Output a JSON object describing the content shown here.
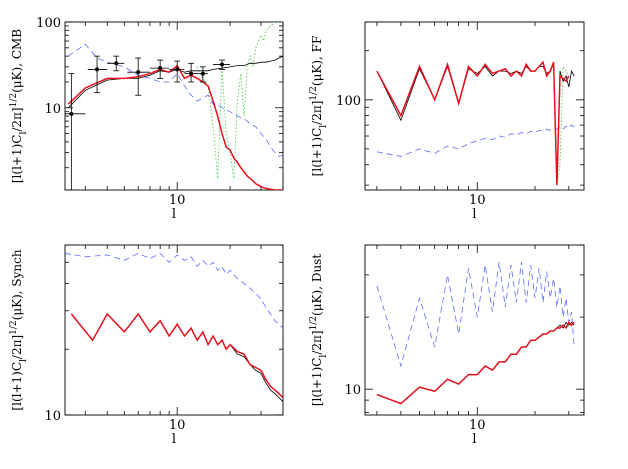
{
  "chart_data": [
    {
      "type": "line",
      "ylabel": "[l(l+1)C_l/2π]^{1/2}(μK), CMB",
      "ylabel_main": "[l(l+1)C",
      "ylabel_sub": "l",
      "ylabel_rest": "/2π]",
      "ylabel_sup": "1/2",
      "ylabel_tail": "(μK), CMB",
      "xlabel": "l",
      "xscale": "log",
      "yscale": "log",
      "xlim": [
        2.3,
        40
      ],
      "ylim": [
        1.1,
        100
      ],
      "xticks": [
        {
          "v": 10,
          "label": "10"
        }
      ],
      "yticks": [
        {
          "v": 10,
          "label": "10"
        },
        {
          "v": 100,
          "label": "100"
        }
      ],
      "series": [
        {
          "style": "red-solid",
          "x": [
            2.4,
            3,
            4,
            5,
            6,
            7,
            8,
            9,
            10,
            11,
            12,
            13,
            14,
            15,
            16,
            17,
            18,
            19,
            20,
            21,
            22,
            23,
            24,
            25,
            26,
            27,
            28,
            29,
            30,
            32,
            34,
            36,
            38,
            40
          ],
          "y": [
            11,
            17,
            22,
            22,
            23,
            25,
            28,
            26,
            31,
            22,
            24,
            22,
            20,
            18,
            12,
            8,
            5,
            3.5,
            3.2,
            2.6,
            2.3,
            2.0,
            1.8,
            1.6,
            1.5,
            1.4,
            1.3,
            1.25,
            1.2,
            1.15,
            1.12,
            1.1,
            1.1,
            1.1
          ]
        },
        {
          "style": "black-solid",
          "x": [
            2.4,
            3,
            4,
            5,
            6,
            7,
            8,
            9,
            10,
            11,
            12,
            13,
            14,
            15,
            16,
            18,
            20,
            22,
            24,
            26,
            28,
            30,
            32,
            34,
            36,
            38,
            40
          ],
          "y": [
            10,
            16,
            21,
            22,
            22,
            24,
            27,
            26,
            28,
            26,
            27,
            27,
            27,
            27,
            28,
            29,
            30,
            31,
            31,
            33,
            33,
            34,
            34,
            35,
            36,
            38,
            40
          ]
        },
        {
          "style": "blue-dashed",
          "x": [
            2.4,
            3,
            3.5,
            4,
            5,
            6,
            7,
            8,
            9,
            10,
            11,
            12,
            13,
            14,
            15,
            16,
            17,
            18,
            20,
            22,
            24,
            26,
            28,
            30,
            32,
            34,
            36,
            38,
            40
          ],
          "y": [
            40,
            55,
            38,
            34,
            30,
            24,
            22,
            20,
            20,
            25,
            18,
            14,
            12,
            13,
            14,
            11,
            11,
            10,
            9,
            8,
            7.5,
            6.5,
            6,
            5,
            4.3,
            3.5,
            3,
            2.7,
            2.8
          ]
        },
        {
          "style": "green-dotted",
          "x": [
            13,
            14,
            15,
            16,
            17,
            18,
            19,
            20,
            21,
            22,
            23,
            24,
            25,
            26,
            27,
            28,
            29,
            30,
            31,
            32,
            34,
            36,
            38,
            40
          ],
          "y": [
            30,
            22,
            18,
            6,
            1.5,
            30,
            5,
            3,
            1.5,
            12,
            25,
            8,
            30,
            40,
            30,
            50,
            60,
            70,
            60,
            80,
            90,
            100,
            100,
            100
          ]
        }
      ],
      "points": {
        "x": [
          2.5,
          3.5,
          4.5,
          6,
          8,
          10,
          12,
          14,
          18
        ],
        "y": [
          8.5,
          28,
          33,
          26,
          29,
          28,
          25,
          25,
          32
        ],
        "ylo": [
          1.1,
          15,
          27,
          14,
          22,
          20,
          20,
          20,
          28
        ],
        "yhi": [
          25,
          40,
          40,
          38,
          36,
          35,
          33,
          30,
          36
        ],
        "xlo": [
          2.2,
          3.1,
          4,
          5.2,
          7,
          9,
          11,
          12.5,
          16
        ],
        "xhi": [
          3,
          4,
          5,
          7,
          9,
          11,
          13,
          15,
          20
        ]
      }
    },
    {
      "type": "line",
      "ylabel": "[l(l+1)C_l/2π]^{1/2}(μK), FF",
      "ylabel_main": "[l(l+1)C",
      "ylabel_sub": "l",
      "ylabel_rest": "/2π]",
      "ylabel_sup": "1/2",
      "ylabel_tail": "(μK), FF",
      "xlabel": "l",
      "xscale": "log",
      "yscale": "log",
      "xlim": [
        2.6,
        36
      ],
      "ylim": [
        28,
        300
      ],
      "xticks": [
        {
          "v": 10,
          "label": "10"
        }
      ],
      "yticks": [
        {
          "v": 100,
          "label": "100"
        }
      ],
      "series": [
        {
          "style": "red-solid",
          "x": [
            3,
            4,
            5,
            6,
            7,
            8,
            9,
            10,
            11,
            12,
            13,
            14,
            15,
            16,
            17,
            18,
            19,
            20,
            21,
            22,
            23,
            24,
            25,
            26,
            27,
            28,
            29,
            30
          ],
          "y": [
            150,
            80,
            160,
            100,
            165,
            95,
            160,
            140,
            165,
            145,
            150,
            155,
            140,
            150,
            140,
            165,
            150,
            150,
            160,
            170,
            140,
            150,
            170,
            30,
            140,
            135,
            130,
            140
          ]
        },
        {
          "style": "black-solid",
          "x": [
            3,
            4,
            5,
            6,
            7,
            8,
            9,
            10,
            11,
            12,
            13,
            14,
            15,
            16,
            17,
            18,
            19,
            20,
            21,
            22,
            23,
            24,
            25,
            26,
            27,
            28,
            29,
            30,
            31,
            32
          ],
          "y": [
            150,
            75,
            155,
            100,
            160,
            95,
            155,
            145,
            160,
            140,
            150,
            150,
            145,
            150,
            145,
            160,
            150,
            150,
            160,
            160,
            145,
            150,
            165,
            30,
            150,
            130,
            140,
            120,
            150,
            140
          ]
        },
        {
          "style": "blue-dashed",
          "x": [
            3,
            4,
            5,
            6,
            7,
            8,
            9,
            10,
            11,
            12,
            13,
            14,
            15,
            16,
            17,
            18,
            19,
            20,
            21,
            22,
            23,
            24,
            25,
            26,
            27,
            28,
            29,
            30,
            31,
            32
          ],
          "y": [
            48,
            45,
            50,
            47,
            52,
            50,
            54,
            56,
            58,
            57,
            60,
            59,
            62,
            61,
            63,
            62,
            64,
            63,
            65,
            64,
            66,
            65,
            67,
            66,
            68,
            66,
            69,
            67,
            70,
            68
          ]
        },
        {
          "style": "green-dotted",
          "x": [
            25,
            26,
            27,
            28,
            29,
            30
          ],
          "y": [
            160,
            30,
            40,
            160,
            150,
            140
          ]
        }
      ]
    },
    {
      "type": "line",
      "ylabel": "[l(l+1)C_l/2π]^{1/2}(μK), Synch",
      "ylabel_main": "[l(l+1)C",
      "ylabel_sub": "l",
      "ylabel_rest": "/2π]",
      "ylabel_sup": "1/2",
      "ylabel_tail": "(μK), Synch",
      "xlabel": "l",
      "xscale": "log",
      "yscale": "log",
      "xlim": [
        2.3,
        40
      ],
      "ylim": [
        10,
        60
      ],
      "xticks": [
        {
          "v": 10,
          "label": "10"
        }
      ],
      "yticks": [
        {
          "v": 10,
          "label": "10"
        }
      ],
      "series": [
        {
          "style": "red-solid",
          "x": [
            2.5,
            3.3,
            4,
            5,
            6,
            7,
            8,
            9,
            10,
            11,
            12,
            13,
            14,
            15,
            16,
            17,
            18,
            19,
            20,
            22,
            24,
            26,
            28,
            30,
            32,
            34,
            36,
            38,
            40
          ],
          "y": [
            29,
            22,
            29,
            24,
            29,
            24,
            27,
            23,
            26,
            23,
            25,
            22,
            24,
            21,
            23,
            21,
            22,
            20,
            21,
            19.5,
            19,
            17,
            16.5,
            16,
            14.5,
            13.5,
            13,
            12.5,
            12
          ]
        },
        {
          "style": "black-solid",
          "x": [
            2.5,
            3.3,
            4,
            5,
            6,
            7,
            8,
            9,
            10,
            11,
            12,
            13,
            14,
            15,
            16,
            17,
            18,
            19,
            20,
            22,
            24,
            26,
            28,
            30,
            32,
            34,
            36,
            38,
            40
          ],
          "y": [
            29,
            22,
            29,
            24,
            29,
            24,
            27,
            23,
            26,
            23,
            25,
            22,
            24,
            21,
            23,
            21,
            22,
            20,
            21,
            19,
            18.5,
            17,
            16,
            15.5,
            14,
            13,
            12.5,
            12,
            11.5
          ]
        },
        {
          "style": "blue-dashed",
          "x": [
            2.3,
            3,
            4,
            5,
            6,
            7,
            8,
            9,
            10,
            11,
            12,
            13,
            14,
            15,
            16,
            17,
            18,
            19,
            20,
            22,
            24,
            26,
            28,
            30,
            32,
            34,
            36,
            38,
            40
          ],
          "y": [
            55,
            53,
            54,
            51,
            55,
            52,
            55,
            50,
            54,
            51,
            53,
            48,
            51,
            48,
            50,
            46,
            48,
            44,
            46,
            42,
            40,
            38,
            36,
            34,
            31,
            29,
            27,
            26,
            25
          ]
        }
      ]
    },
    {
      "type": "line",
      "ylabel": "[l(l+1)C_l/2π]^{1/2}(μK), Dust",
      "ylabel_main": "[l(l+1)C",
      "ylabel_sub": "l",
      "ylabel_rest": "/2π]",
      "ylabel_sup": "1/2",
      "ylabel_tail": "(μK), Dust",
      "xlabel": "l",
      "xscale": "log",
      "yscale": "log",
      "xlim": [
        2.6,
        36
      ],
      "ylim": [
        7.8,
        40
      ],
      "xticks": [
        {
          "v": 10,
          "label": "10"
        }
      ],
      "yticks": [
        {
          "v": 10,
          "label": "10"
        }
      ],
      "series": [
        {
          "style": "red-solid",
          "x": [
            3,
            4,
            5,
            6,
            7,
            8,
            9,
            10,
            11,
            12,
            13,
            14,
            15,
            16,
            17,
            18,
            19,
            20,
            21,
            22,
            23,
            24,
            25,
            26,
            27,
            28,
            29,
            30,
            31,
            32
          ],
          "y": [
            9.5,
            8.7,
            10.2,
            9.8,
            11,
            10.5,
            11.5,
            11.5,
            12.5,
            12,
            13,
            13,
            14,
            14,
            15,
            15,
            16,
            16,
            16.5,
            17,
            17,
            17.5,
            17.5,
            18,
            18,
            18.5,
            18,
            19,
            18.5,
            19
          ]
        },
        {
          "style": "black-solid",
          "x": [
            3,
            4,
            5,
            6,
            7,
            8,
            9,
            10,
            11,
            12,
            13,
            14,
            15,
            16,
            17,
            18,
            19,
            20,
            21,
            22,
            23,
            24,
            25,
            26,
            27,
            28,
            29,
            30,
            31,
            32
          ],
          "y": [
            9.5,
            8.7,
            10.2,
            9.8,
            11,
            10.5,
            11.5,
            11.5,
            12.5,
            12,
            13,
            13,
            14,
            14,
            15,
            15,
            16,
            16,
            16.5,
            17,
            17,
            17.5,
            17.5,
            18,
            18.5,
            18,
            19,
            18.5,
            19,
            18.5
          ]
        },
        {
          "style": "blue-dashed",
          "x": [
            3,
            4,
            5,
            6,
            7,
            8,
            9,
            10,
            11,
            12,
            13,
            14,
            15,
            16,
            17,
            18,
            19,
            20,
            21,
            22,
            23,
            24,
            25,
            26,
            27,
            28,
            29,
            30,
            31,
            32
          ],
          "y": [
            27,
            12.5,
            24,
            15,
            30,
            17,
            32,
            20,
            33,
            21,
            34,
            22,
            33,
            23,
            34,
            23,
            33,
            24,
            32,
            23,
            31,
            24,
            29,
            22,
            27,
            20,
            24,
            19,
            21,
            15
          ]
        }
      ]
    }
  ],
  "style": {
    "red": "#e8101c",
    "black": "#000000",
    "blue": "#5d6dff",
    "green": "#55cc55"
  }
}
